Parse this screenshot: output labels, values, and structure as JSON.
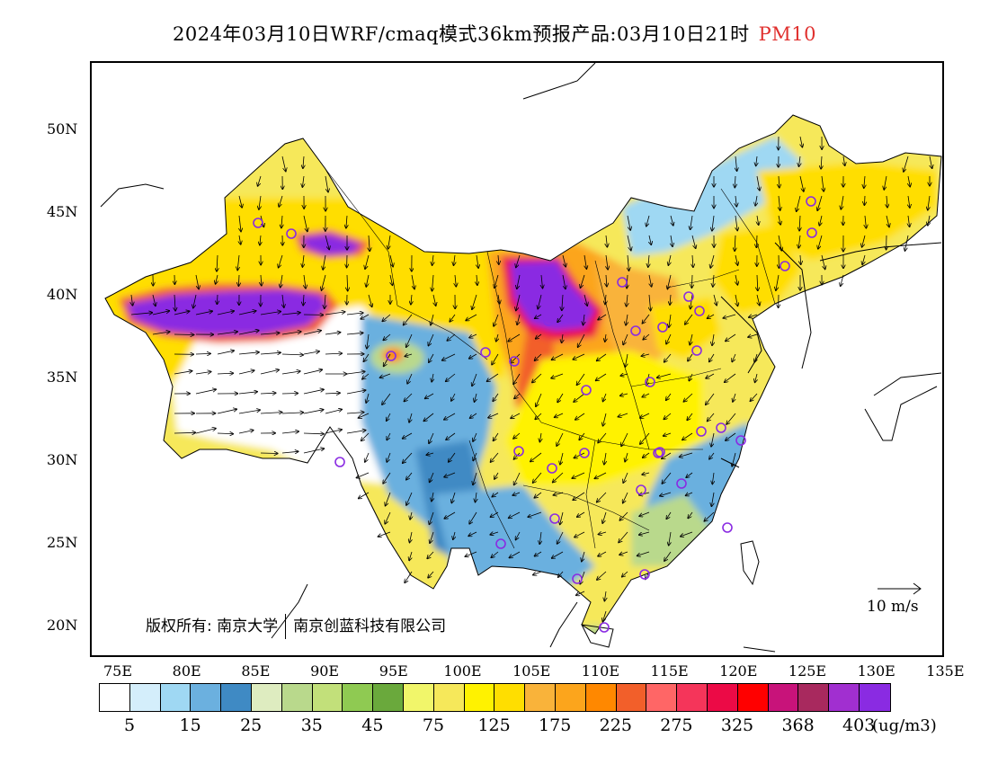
{
  "title": {
    "main": "2024年03月10日WRF/cmaq模式36km预报产品:03月10日21时",
    "variable": "PM10",
    "variable_color": "#e0302e"
  },
  "axes": {
    "lat_labels": [
      "50N",
      "45N",
      "40N",
      "35N",
      "30N",
      "25N",
      "20N"
    ],
    "lon_labels": [
      "75E",
      "80E",
      "85E",
      "90E",
      "95E",
      "100E",
      "105E",
      "110E",
      "115E",
      "120E",
      "125E",
      "130E",
      "135E"
    ]
  },
  "colorbar": {
    "colors": [
      "#ffffff",
      "#d4eefb",
      "#9fd8f3",
      "#6bb0df",
      "#3f8ac4",
      "#deecc0",
      "#b9d98c",
      "#c2e07a",
      "#8fca52",
      "#6aa93c",
      "#f1f66a",
      "#f6e85a",
      "#fff200",
      "#ffde00",
      "#f9b33a",
      "#fca51c",
      "#ff8800",
      "#f25f2a",
      "#ff6666",
      "#f5355a",
      "#ec0a46",
      "#ff0000",
      "#c8137a",
      "#a8295e",
      "#a12fd0",
      "#8a2be2"
    ],
    "labels": [
      "5",
      "15",
      "25",
      "35",
      "45",
      "75",
      "125",
      "175",
      "225",
      "275",
      "325",
      "368",
      "403"
    ],
    "unit": "(ug/m3)"
  },
  "copyright": {
    "prefix": "版权所有:",
    "org1": "南京大学",
    "org2": "南京创蓝科技有限公司"
  },
  "wind_reference": {
    "label": "10 m/s"
  },
  "icons": [
    "city-marker-icon",
    "wind-arrow-icon"
  ]
}
